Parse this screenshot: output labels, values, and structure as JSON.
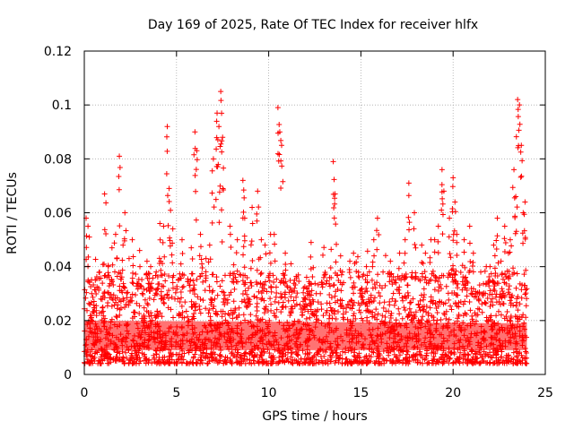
{
  "chart_data": {
    "type": "scatter",
    "title": "Day 169 of 2025, Rate Of TEC Index for receiver hlfx",
    "xlabel": "GPS time / hours",
    "ylabel": "ROTI / TECUs",
    "xlim": [
      0,
      25
    ],
    "ylim": [
      0,
      0.12
    ],
    "xticks": [
      {
        "value": 0,
        "label": "0"
      },
      {
        "value": 5,
        "label": "5"
      },
      {
        "value": 10,
        "label": "10"
      },
      {
        "value": 15,
        "label": "15"
      },
      {
        "value": 20,
        "label": "20"
      },
      {
        "value": 25,
        "label": "25"
      }
    ],
    "yticks": [
      {
        "value": 0,
        "label": "0"
      },
      {
        "value": 0.02,
        "label": "0.02"
      },
      {
        "value": 0.04,
        "label": "0.04"
      },
      {
        "value": 0.06,
        "label": "0.06"
      },
      {
        "value": 0.08,
        "label": "0.08"
      },
      {
        "value": 0.1,
        "label": "0.1"
      },
      {
        "value": 0.12,
        "label": "0.12"
      }
    ],
    "grid": true,
    "marker": "+",
    "color": "#ff0000",
    "series": [
      {
        "name": "ROTI",
        "x": [
          0.1,
          0.4,
          0.9,
          1.1,
          1.3,
          1.7,
          1.9,
          2.2,
          2.6,
          3.0,
          3.4,
          3.9,
          4.3,
          4.5,
          4.6,
          4.8,
          5.3,
          5.8,
          6.0,
          6.1,
          6.3,
          6.8,
          7.0,
          7.2,
          7.3,
          7.4,
          7.5,
          7.9,
          8.3,
          8.6,
          8.7,
          9.1,
          9.4,
          9.8,
          10.3,
          10.5,
          10.6,
          10.7,
          10.9,
          11.4,
          11.9,
          12.3,
          12.8,
          13.3,
          13.5,
          13.6,
          14.0,
          14.4,
          14.9,
          15.3,
          15.7,
          15.9,
          16.2,
          16.6,
          17.1,
          17.6,
          17.9,
          18.3,
          18.8,
          19.2,
          19.4,
          19.5,
          19.8,
          20.0,
          20.1,
          20.2,
          20.6,
          21.1,
          21.5,
          22.0,
          22.4,
          22.8,
          23.1,
          23.3,
          23.4,
          23.5,
          23.6,
          23.7,
          23.9,
          0.2,
          2.1,
          5.1,
          8.9,
          12.1,
          16.9,
          18.5,
          21.8,
          23.0,
          0.6,
          3.6,
          6.6,
          9.6,
          14.6,
          17.4,
          20.9,
          22.6,
          1.5,
          4.1,
          10.1,
          13.9,
          19.0,
          22.2,
          23.8
        ],
        "y": [
          0.058,
          0.03,
          0.028,
          0.067,
          0.04,
          0.052,
          0.081,
          0.06,
          0.05,
          0.046,
          0.042,
          0.038,
          0.055,
          0.092,
          0.069,
          0.054,
          0.05,
          0.047,
          0.09,
          0.083,
          0.052,
          0.048,
          0.08,
          0.097,
          0.092,
          0.105,
          0.088,
          0.055,
          0.05,
          0.072,
          0.058,
          0.062,
          0.068,
          0.048,
          0.052,
          0.099,
          0.09,
          0.085,
          0.045,
          0.035,
          0.032,
          0.049,
          0.03,
          0.036,
          0.079,
          0.067,
          0.038,
          0.042,
          0.036,
          0.04,
          0.05,
          0.058,
          0.038,
          0.042,
          0.045,
          0.071,
          0.06,
          0.048,
          0.05,
          0.055,
          0.076,
          0.068,
          0.058,
          0.073,
          0.064,
          0.052,
          0.05,
          0.045,
          0.038,
          0.04,
          0.058,
          0.055,
          0.05,
          0.076,
          0.066,
          0.102,
          0.1,
          0.085,
          0.064,
          0.055,
          0.048,
          0.035,
          0.032,
          0.03,
          0.034,
          0.045,
          0.04,
          0.045,
          0.035,
          0.04,
          0.043,
          0.05,
          0.045,
          0.05,
          0.055,
          0.042,
          0.047,
          0.056,
          0.052,
          0.044,
          0.05,
          0.048,
          0.06
        ]
      }
    ],
    "dense_band_note": "Baseline cloud of points spans roughly 0.005 to 0.03 TECUs across 0 to 24 hours"
  }
}
